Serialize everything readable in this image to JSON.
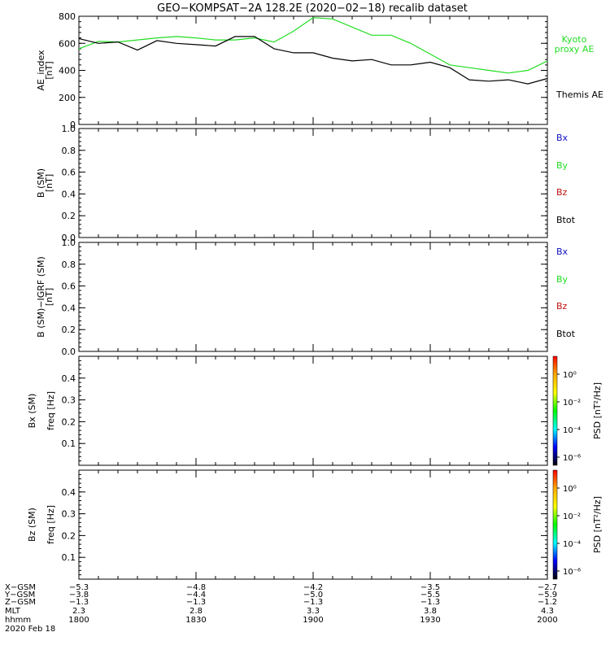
{
  "title": "GEO−KOMPSAT−2A 128.2E (2020−02−18) recalib dataset",
  "colors": {
    "black": "#000000",
    "green": "#22dd22",
    "blue": "#1010c0",
    "red": "#c01010"
  },
  "colorbar_stops": [
    "#ff0000",
    "#ffaa00",
    "#ffff00",
    "#00ff00",
    "#00ffff",
    "#0000ff",
    "#000000"
  ],
  "chart_data": [
    {
      "type": "line",
      "id": "ae",
      "ylabel": "AE_index",
      "yunit": "[nT]",
      "ylim": [
        0,
        800
      ],
      "yticks": [
        "0",
        "200",
        "400",
        "600",
        "800"
      ],
      "x_minutes": [
        0,
        5,
        10,
        15,
        20,
        25,
        30,
        35,
        40,
        45,
        50,
        55,
        60,
        65,
        70,
        75,
        80,
        85,
        90,
        95,
        100,
        105,
        110,
        115,
        120
      ],
      "series": [
        {
          "name": "Kyoto proxy AE",
          "legend": [
            "Kyoto",
            "proxy AE"
          ],
          "color": "green",
          "values": [
            560,
            615,
            610,
            625,
            640,
            650,
            640,
            625,
            625,
            640,
            610,
            690,
            790,
            780,
            720,
            660,
            660,
            600,
            520,
            440,
            420,
            400,
            380,
            400,
            470
          ]
        },
        {
          "name": "Themis AE",
          "legend": [
            "Themis AE"
          ],
          "color": "black",
          "values": [
            635,
            600,
            610,
            550,
            620,
            600,
            590,
            580,
            650,
            650,
            560,
            530,
            530,
            490,
            470,
            480,
            440,
            440,
            460,
            420,
            330,
            320,
            330,
            300,
            340
          ]
        }
      ]
    },
    {
      "type": "line",
      "id": "bsm",
      "ylabel": "B (SM)",
      "yunit": "[nT]",
      "ylim": [
        0,
        1
      ],
      "yticks": [
        "0.0",
        "0.2",
        "0.4",
        "0.6",
        "0.8",
        "1.0"
      ],
      "legend": [
        {
          "label": "Bx",
          "color": "blue"
        },
        {
          "label": "By",
          "color": "green"
        },
        {
          "label": "Bz",
          "color": "red"
        },
        {
          "label": "Btot",
          "color": "black"
        }
      ]
    },
    {
      "type": "line",
      "id": "bigrf",
      "ylabel": "B (SM)−IGRF (SM)",
      "yunit": "[nT]",
      "ylim": [
        0,
        1
      ],
      "yticks": [
        "0.0",
        "0.2",
        "0.4",
        "0.6",
        "0.8",
        "1.0"
      ],
      "legend": [
        {
          "label": "Bx",
          "color": "blue"
        },
        {
          "label": "By",
          "color": "green"
        },
        {
          "label": "Bz",
          "color": "red"
        },
        {
          "label": "Btot",
          "color": "black"
        }
      ]
    },
    {
      "type": "heatmap",
      "id": "bxspec",
      "ylabel": "Bx (SM)",
      "ylabel2": "freq [Hz]",
      "ylim": [
        0,
        0.5
      ],
      "yticks": [
        "0.1",
        "0.2",
        "0.3",
        "0.4"
      ],
      "colorbar_label": "PSD [nT²/Hz]",
      "colorbar_ticks": [
        "10⁰",
        "10⁻²",
        "10⁻⁴",
        "10⁻⁶"
      ]
    },
    {
      "type": "heatmap",
      "id": "bzspec",
      "ylabel": "Bz (SM)",
      "ylabel2": "freq [Hz]",
      "ylim": [
        0,
        0.5
      ],
      "yticks": [
        "0.1",
        "0.2",
        "0.3",
        "0.4"
      ],
      "colorbar_label": "PSD [nT²/Hz]",
      "colorbar_ticks": [
        "10⁰",
        "10⁻²",
        "10⁻⁴",
        "10⁻⁶"
      ]
    }
  ],
  "x_axis": {
    "row_labels": [
      "X−GSM",
      "Y−GSM",
      "Z−GSM",
      "MLT",
      "hhmm"
    ],
    "date": "2020 Feb 18",
    "ticks": [
      {
        "minute": 0,
        "values": [
          "−5.3",
          "−3.8",
          "−1.3",
          "2.3",
          "1800"
        ]
      },
      {
        "minute": 30,
        "values": [
          "−4.8",
          "−4.4",
          "−1.3",
          "2.8",
          "1830"
        ]
      },
      {
        "minute": 60,
        "values": [
          "−4.2",
          "−5.0",
          "−1.3",
          "3.3",
          "1900"
        ]
      },
      {
        "minute": 90,
        "values": [
          "−3.5",
          "−5.5",
          "−1.3",
          "3.8",
          "1930"
        ]
      },
      {
        "minute": 120,
        "values": [
          "−2.7",
          "−5.9",
          "−1.2",
          "4.3",
          "2000"
        ]
      }
    ]
  }
}
